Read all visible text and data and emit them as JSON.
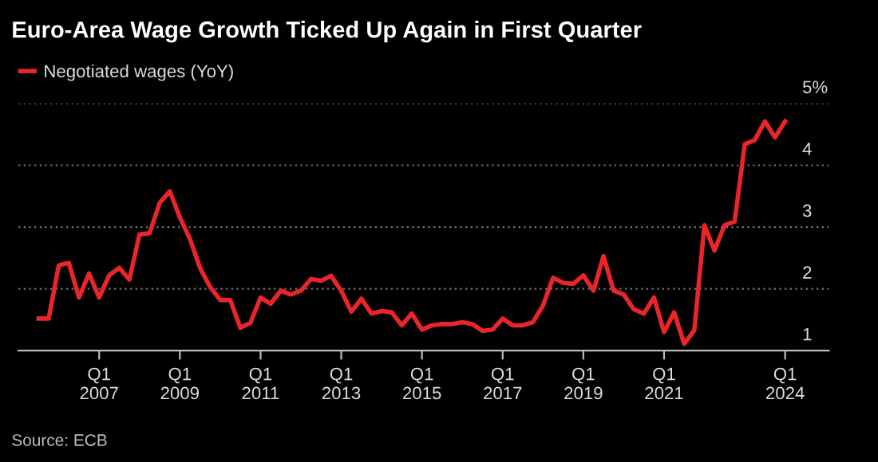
{
  "chart_data": {
    "type": "line",
    "title": "Euro-Area Wage Growth Ticked Up Again in First Quarter",
    "x": [
      "2005-07",
      "2005-10",
      "2006-01",
      "2006-04",
      "2006-07",
      "2006-10",
      "2007-01",
      "2007-04",
      "2007-07",
      "2007-10",
      "2008-01",
      "2008-04",
      "2008-07",
      "2008-10",
      "2009-01",
      "2009-04",
      "2009-07",
      "2009-10",
      "2010-01",
      "2010-04",
      "2010-07",
      "2010-10",
      "2011-01",
      "2011-04",
      "2011-07",
      "2011-10",
      "2012-01",
      "2012-04",
      "2012-07",
      "2012-10",
      "2013-01",
      "2013-04",
      "2013-07",
      "2013-10",
      "2014-01",
      "2014-04",
      "2014-07",
      "2014-10",
      "2015-01",
      "2015-04",
      "2015-07",
      "2015-10",
      "2016-01",
      "2016-04",
      "2016-07",
      "2016-10",
      "2017-01",
      "2017-04",
      "2017-07",
      "2017-10",
      "2018-01",
      "2018-04",
      "2018-07",
      "2018-10",
      "2019-01",
      "2019-04",
      "2019-07",
      "2019-10",
      "2020-01",
      "2020-04",
      "2020-07",
      "2020-10",
      "2021-01",
      "2021-04",
      "2021-07",
      "2021-10",
      "2022-01",
      "2022-04",
      "2022-07",
      "2022-10",
      "2023-01",
      "2023-04",
      "2023-07",
      "2023-10",
      "2024-01"
    ],
    "series": [
      {
        "name": "Negotiated wages (YoY)",
        "color": "#e8262a",
        "values": [
          1.52,
          1.52,
          2.38,
          2.42,
          1.86,
          2.25,
          1.86,
          2.22,
          2.34,
          2.15,
          2.88,
          2.9,
          3.39,
          3.58,
          3.16,
          2.81,
          2.34,
          2.03,
          1.82,
          1.82,
          1.37,
          1.45,
          1.86,
          1.76,
          1.97,
          1.91,
          1.97,
          2.16,
          2.13,
          2.21,
          1.97,
          1.63,
          1.84,
          1.6,
          1.64,
          1.62,
          1.41,
          1.6,
          1.34,
          1.41,
          1.43,
          1.43,
          1.46,
          1.43,
          1.32,
          1.34,
          1.52,
          1.41,
          1.41,
          1.46,
          1.73,
          2.18,
          2.1,
          2.08,
          2.22,
          1.97,
          2.53,
          1.97,
          1.91,
          1.67,
          1.6,
          1.86,
          1.3,
          1.62,
          1.11,
          1.33,
          3.03,
          2.62,
          3.03,
          3.09,
          4.34,
          4.41,
          4.71,
          4.45,
          4.71
        ]
      }
    ],
    "xlim": [
      "2005-01",
      "2025-02"
    ],
    "xticks": [
      {
        "value": "2007-01",
        "label": "Q1\n2007"
      },
      {
        "value": "2009-01",
        "label": "Q1\n2009"
      },
      {
        "value": "2011-01",
        "label": "Q1\n2011"
      },
      {
        "value": "2013-01",
        "label": "Q1\n2013"
      },
      {
        "value": "2015-01",
        "label": "Q1\n2015"
      },
      {
        "value": "2017-01",
        "label": "Q1\n2017"
      },
      {
        "value": "2019-01",
        "label": "Q1\n2019"
      },
      {
        "value": "2021-01",
        "label": "Q1\n2021"
      },
      {
        "value": "2024-01",
        "label": "Q1\n2024"
      }
    ],
    "ylim": [
      1,
      5
    ],
    "yticks": [
      1,
      2,
      3,
      4,
      {
        "value": 5,
        "label": "5%"
      }
    ],
    "grid": "y",
    "legend": "top left",
    "marker": "none",
    "line_style": "solid",
    "annotations": [
      "Source: ECB"
    ]
  }
}
